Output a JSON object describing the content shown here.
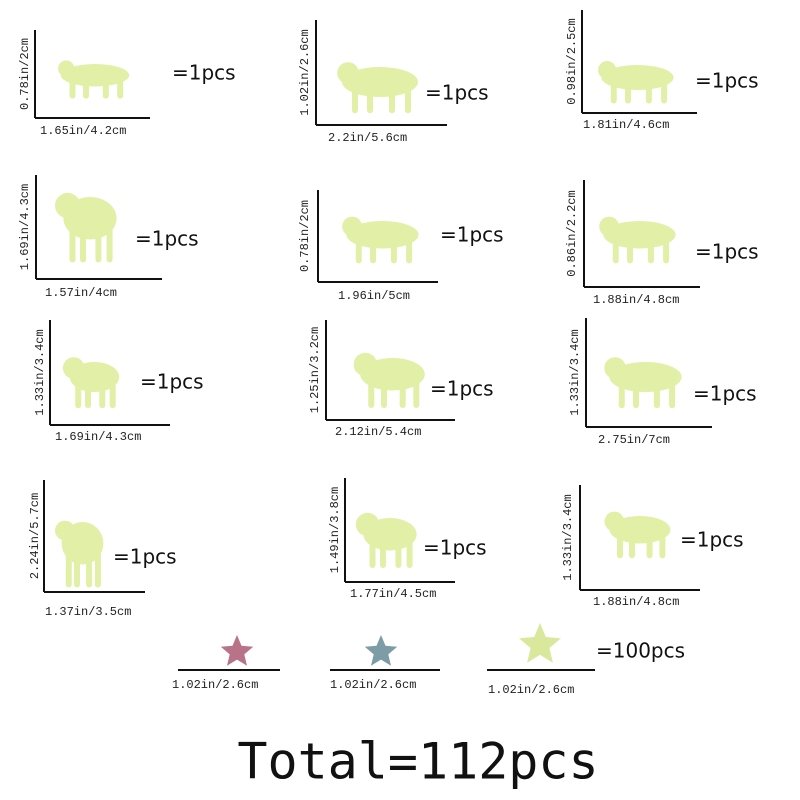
{
  "items": [
    {
      "height": "0.78in/2cm",
      "width": "1.65in/4.2cm",
      "quantity": "=1pcs"
    },
    {
      "height": "1.02in/2.6cm",
      "width": "2.2in/5.6cm",
      "quantity": "=1pcs"
    },
    {
      "height": "0.98in/2.5cm",
      "width": "1.81in/4.6cm",
      "quantity": "=1pcs"
    },
    {
      "height": "1.69in/4.3cm",
      "width": "1.57in/4cm",
      "quantity": "=1pcs"
    },
    {
      "height": "0.78in/2cm",
      "width": "1.96in/5cm",
      "quantity": "=1pcs"
    },
    {
      "height": "0.86in/2.2cm",
      "width": "1.88in/4.8cm",
      "quantity": "=1pcs"
    },
    {
      "height": "1.33in/3.4cm",
      "width": "1.69in/4.3cm",
      "quantity": "=1pcs"
    },
    {
      "height": "1.25in/3.2cm",
      "width": "2.12in/5.4cm",
      "quantity": "=1pcs"
    },
    {
      "height": "1.33in/3.4cm",
      "width": "2.75in/7cm",
      "quantity": "=1pcs"
    },
    {
      "height": "2.24in/5.7cm",
      "width": "1.37in/3.5cm",
      "quantity": "=1pcs"
    },
    {
      "height": "1.49in/3.8cm",
      "width": "1.77in/4.5cm",
      "quantity": "=1pcs"
    },
    {
      "height": "1.33in/3.4cm",
      "width": "1.88in/4.8cm",
      "quantity": "=1pcs"
    }
  ],
  "stars": [
    {
      "width": "1.02in/2.6cm"
    },
    {
      "width": "1.02in/2.6cm"
    },
    {
      "width": "1.02in/2.6cm"
    }
  ],
  "stars_quantity": "=100pcs",
  "total": "Total=112pcs"
}
